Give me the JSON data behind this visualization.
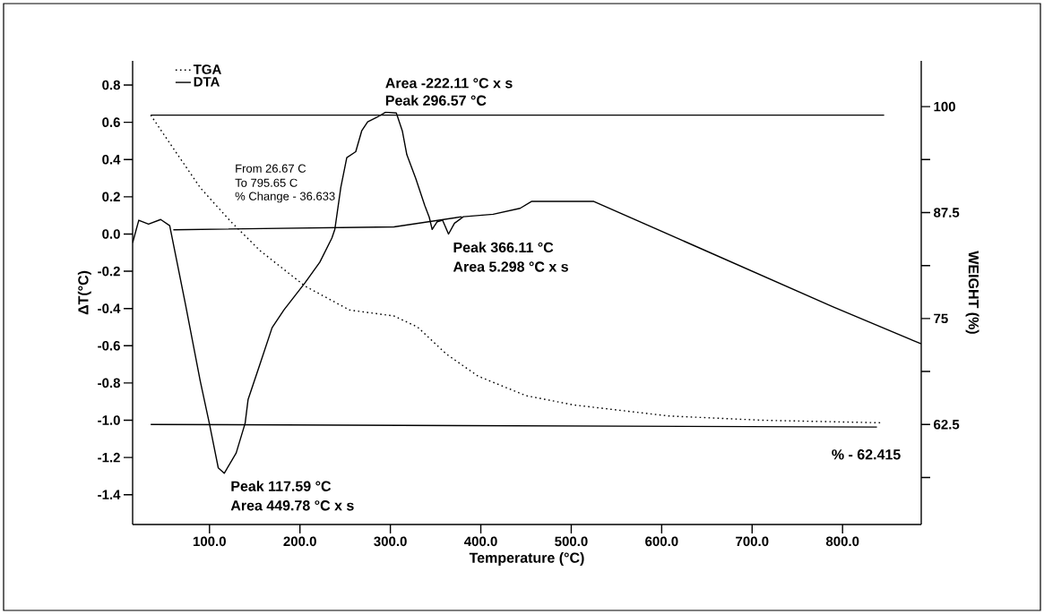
{
  "chart_data": {
    "type": "line",
    "xlabel": "Temperature (°C)",
    "ylabel": "ΔT(°C)",
    "y2label": "WEIGHT (%)",
    "xlim": [
      15,
      887
    ],
    "ylim": [
      -1.56,
      0.93
    ],
    "y2lim": [
      50.7,
      105.4
    ],
    "xticks": [
      {
        "value": 100,
        "label": "100.0"
      },
      {
        "value": 200,
        "label": "200.0"
      },
      {
        "value": 300,
        "label": "300.0"
      },
      {
        "value": 400,
        "label": "400.0"
      },
      {
        "value": 500,
        "label": "500.0"
      },
      {
        "value": 600,
        "label": "600.0"
      },
      {
        "value": 700,
        "label": "700.0"
      },
      {
        "value": 800,
        "label": "800.0"
      }
    ],
    "yticks": [
      -1.4,
      -1.2,
      {
        "value": -1,
        "label": "-1.0"
      },
      -0.8,
      -0.6,
      -0.4,
      -0.2,
      {
        "value": 0,
        "label": "0.0"
      },
      0.2,
      0.4,
      0.6,
      0.8
    ],
    "y2ticks": [
      {
        "value": 56.25,
        "label": null
      },
      62.5,
      {
        "value": 68.75,
        "label": null
      },
      75,
      {
        "value": 81.25,
        "label": null
      },
      87.5,
      {
        "value": 93.75,
        "label": null
      },
      100
    ],
    "legend": "top left",
    "series": [
      {
        "name": "TGA",
        "color": "#000000",
        "line_style": "dotted",
        "axis": "y2",
        "x": [
          35,
          56,
          90,
          123,
          156,
          206,
          255,
          304,
          330,
          362,
          397,
          450,
          503,
          608,
          712,
          843
        ],
        "values": [
          99.0,
          95.7,
          90.4,
          86.5,
          83.0,
          78.8,
          76.0,
          75.3,
          74.0,
          70.8,
          68.2,
          65.9,
          64.8,
          63.5,
          63.0,
          62.7
        ]
      },
      {
        "name": "DTA",
        "color": "#000000",
        "line_style": "solid",
        "x": [
          15,
          21.8,
          32.6,
          46,
          56,
          73.3,
          89.8,
          99.8,
          109.7,
          116.3,
          129.5,
          139.4,
          142.7,
          156,
          169.2,
          182.4,
          205.5,
          222,
          235.3,
          238.6,
          245.2,
          251.8,
          261.7,
          268.3,
          274.9,
          284.8,
          294.7,
          306.6,
          313.2,
          318.2,
          328.1,
          338,
          343,
          346.2,
          351.8,
          357.7,
          364.3,
          370.9,
          380.7,
          413.7,
          443.4,
          456,
          525,
          789,
          887
        ],
        "values": [
          -0.047,
          0.074,
          0.053,
          0.078,
          0.045,
          -0.375,
          -0.79,
          -1.016,
          -1.256,
          -1.285,
          -1.176,
          -1.016,
          -0.888,
          -0.696,
          -0.503,
          -0.407,
          -0.263,
          -0.151,
          -0.022,
          0.025,
          0.25,
          0.41,
          0.442,
          0.554,
          0.602,
          0.626,
          0.654,
          0.65,
          0.554,
          0.426,
          0.298,
          0.154,
          0.09,
          0.025,
          0.066,
          0.074,
          0.0,
          0.058,
          0.093,
          0.106,
          0.138,
          0.175,
          0.175,
          -0.39,
          -0.59
        ]
      },
      {
        "color": "#000000",
        "line_style": "solid",
        "x": [
          60,
          304,
          379
        ],
        "values": [
          0.023,
          0.038,
          0.093
        ]
      },
      {
        "color": "#000000",
        "line_style": "solid",
        "axis": "y2",
        "x": [
          35,
          846
        ],
        "values": [
          99.0,
          99.0
        ]
      },
      {
        "color": "#000000",
        "line_style": "solid",
        "axis": "y2",
        "x": [
          35,
          838
        ],
        "values": [
          62.5,
          62.2
        ]
      }
    ],
    "annotations": [
      "Area -222.11 °C x s",
      "Peak 296.57 °C",
      "Peak 366.11 °C",
      "Area 5.298 °C x s",
      "Peak 117.59 °C",
      "Area 449.78 °C x s",
      "% - 62.415",
      "From  26.67 C",
      "To  795.65  C",
      "% Change  -  36.633"
    ]
  }
}
